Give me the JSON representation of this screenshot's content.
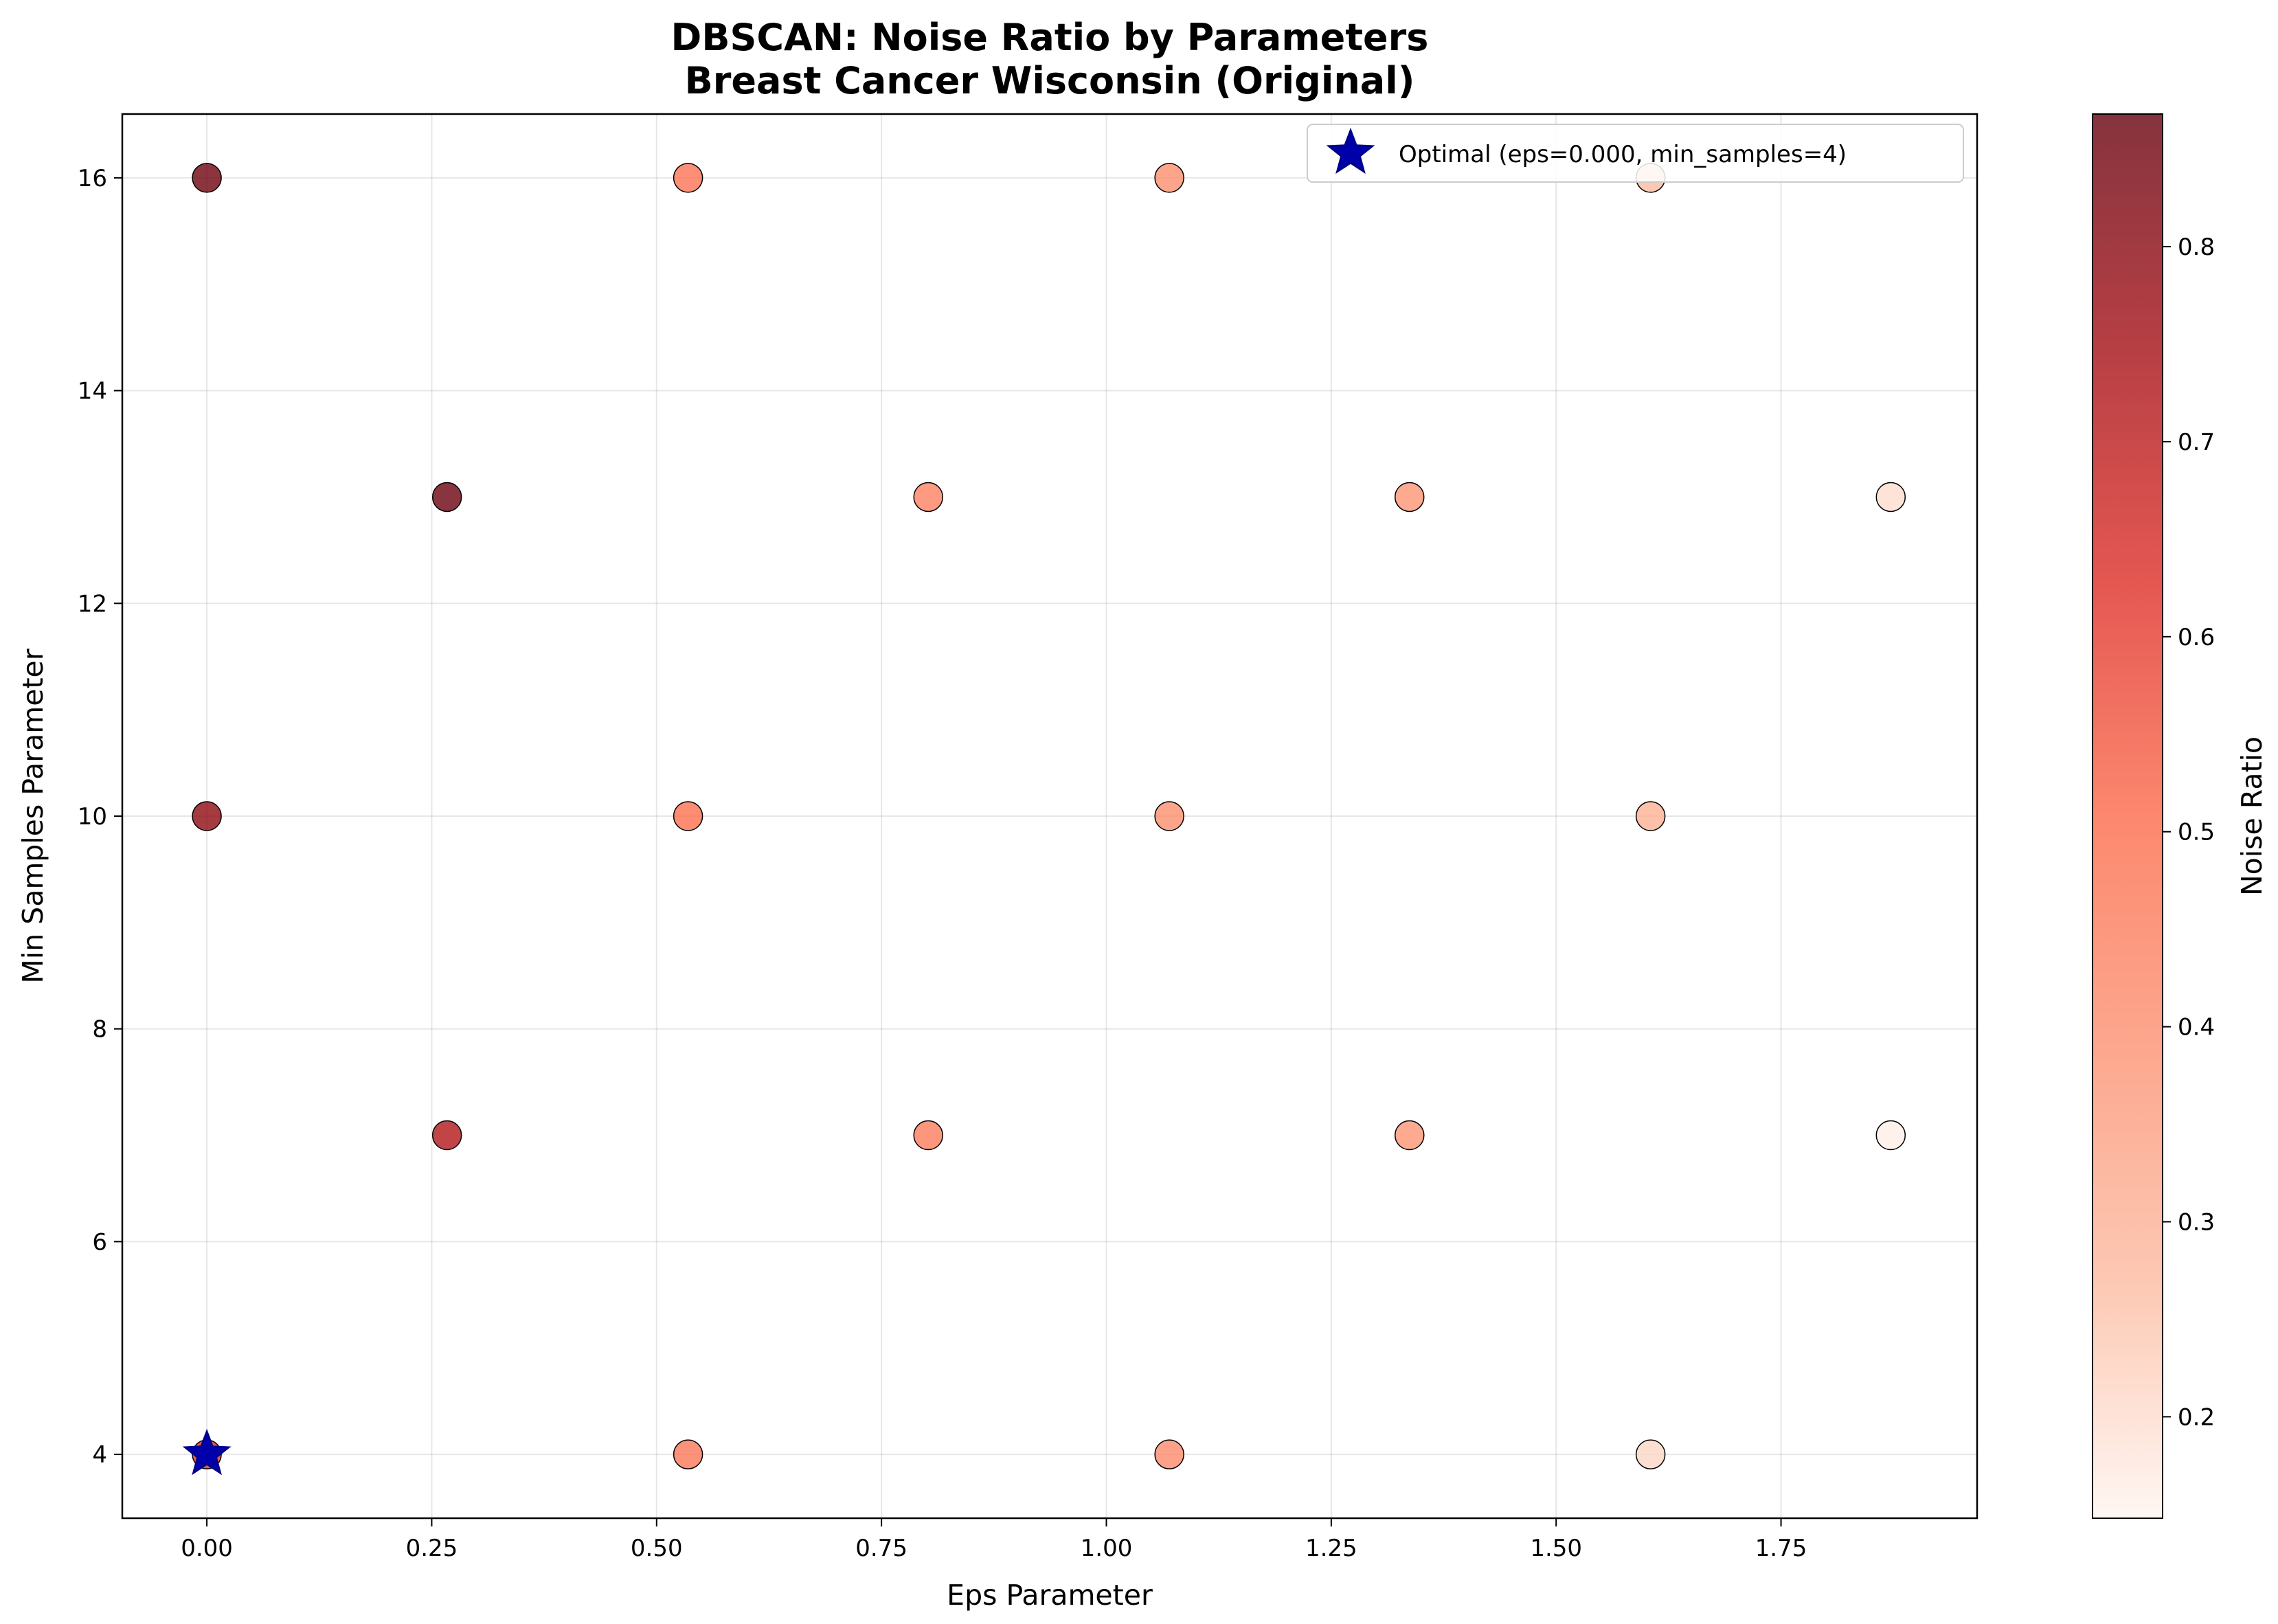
{
  "chart_data": {
    "type": "scatter",
    "title": "DBSCAN: Noise Ratio by Parameters",
    "subtitle": "Breast Cancer Wisconsin (Original)",
    "xlabel": "Eps Parameter",
    "ylabel": "Min Samples Parameter",
    "xlim": [
      -0.094,
      1.968
    ],
    "ylim": [
      3.4,
      16.6
    ],
    "x_ticks": [
      0.0,
      0.25,
      0.5,
      0.75,
      1.0,
      1.25,
      1.5,
      1.75
    ],
    "x_tick_labels": [
      "0.00",
      "0.25",
      "0.50",
      "0.75",
      "1.00",
      "1.25",
      "1.50",
      "1.75"
    ],
    "y_ticks": [
      4,
      6,
      8,
      10,
      12,
      14,
      16
    ],
    "y_tick_labels": [
      "4",
      "6",
      "8",
      "10",
      "12",
      "14",
      "16"
    ],
    "grid": true,
    "colorscale": "Reds",
    "color_stops": [
      "#fff5f0",
      "#fcbba1",
      "#fc9272",
      "#fb6a4a",
      "#de2d26",
      "#a50f15",
      "#67000d"
    ],
    "colorbar": {
      "label": "Noise Ratio",
      "range": [
        0.148,
        0.868
      ],
      "ticks": [
        0.2,
        0.3,
        0.4,
        0.5,
        0.6,
        0.7,
        0.8
      ],
      "tick_labels": [
        "0.2",
        "0.3",
        "0.4",
        "0.5",
        "0.6",
        "0.7",
        "0.8"
      ]
    },
    "series": [
      {
        "points": [
          {
            "eps": 0.0,
            "min_samples": 16,
            "noise_ratio": 0.85
          },
          {
            "eps": 0.0,
            "min_samples": 10,
            "noise_ratio": 0.79
          },
          {
            "eps": 0.0,
            "min_samples": 4,
            "noise_ratio": 0.62
          },
          {
            "eps": 0.267,
            "min_samples": 13,
            "noise_ratio": 0.86
          },
          {
            "eps": 0.267,
            "min_samples": 7,
            "noise_ratio": 0.72
          },
          {
            "eps": 0.535,
            "min_samples": 16,
            "noise_ratio": 0.48
          },
          {
            "eps": 0.535,
            "min_samples": 10,
            "noise_ratio": 0.49
          },
          {
            "eps": 0.535,
            "min_samples": 4,
            "noise_ratio": 0.47
          },
          {
            "eps": 0.802,
            "min_samples": 13,
            "noise_ratio": 0.44
          },
          {
            "eps": 0.802,
            "min_samples": 7,
            "noise_ratio": 0.45
          },
          {
            "eps": 1.07,
            "min_samples": 16,
            "noise_ratio": 0.4
          },
          {
            "eps": 1.07,
            "min_samples": 10,
            "noise_ratio": 0.4
          },
          {
            "eps": 1.07,
            "min_samples": 4,
            "noise_ratio": 0.41
          },
          {
            "eps": 1.337,
            "min_samples": 13,
            "noise_ratio": 0.38
          },
          {
            "eps": 1.337,
            "min_samples": 7,
            "noise_ratio": 0.38
          },
          {
            "eps": 1.605,
            "min_samples": 16,
            "noise_ratio": 0.27
          },
          {
            "eps": 1.605,
            "min_samples": 10,
            "noise_ratio": 0.3
          },
          {
            "eps": 1.605,
            "min_samples": 4,
            "noise_ratio": 0.21
          },
          {
            "eps": 1.872,
            "min_samples": 13,
            "noise_ratio": 0.2
          },
          {
            "eps": 1.872,
            "min_samples": 7,
            "noise_ratio": 0.16
          }
        ]
      }
    ],
    "optimal": {
      "eps": 0.0,
      "min_samples": 4,
      "color": "#0000aa"
    },
    "legend": {
      "placement": "top-right",
      "entries": [
        "Optimal (eps=0.000, min_samples=4)"
      ]
    }
  }
}
